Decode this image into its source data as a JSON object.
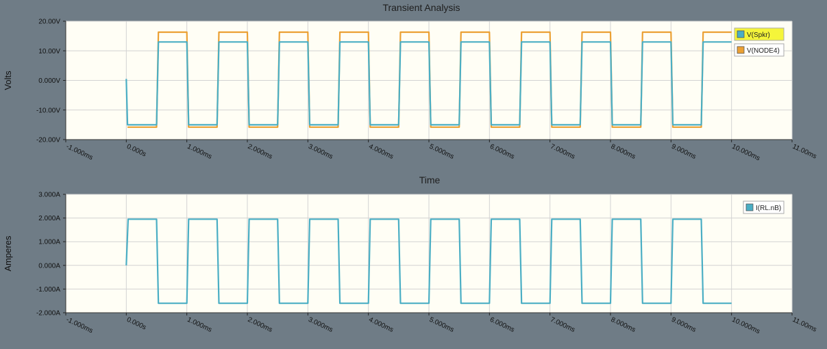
{
  "window_title": "Transient Analysis",
  "chart_data": [
    {
      "type": "line",
      "title": "Transient Analysis",
      "xlabel": "Time",
      "ylabel": "Volts",
      "xlim": [
        -1.0,
        11.0
      ],
      "ylim": [
        -20,
        20
      ],
      "x_ticks": [
        "-1.000ms",
        "0.000s",
        "1.000ms",
        "2.000ms",
        "3.000ms",
        "4.000ms",
        "5.000ms",
        "6.000ms",
        "7.000ms",
        "8.000ms",
        "9.000ms",
        "10.000ms",
        "11.00ms"
      ],
      "y_ticks": [
        {
          "value": 20,
          "label": "20.00V"
        },
        {
          "value": 10,
          "label": "10.00V"
        },
        {
          "value": 0,
          "label": "0.000V"
        },
        {
          "value": -10,
          "label": "-10.00V"
        },
        {
          "value": -20,
          "label": "-20.00V"
        }
      ],
      "grid": true,
      "legend_position": "top-right",
      "series": [
        {
          "name": "V(Spkr)",
          "color": "#4aaec4",
          "highlight": "#f5f53a",
          "low": -15,
          "high": 13,
          "start": 0.5,
          "square_period": 1.0,
          "duty": 0.5,
          "x_start": 0.0,
          "x_end": 10.0,
          "initial": 0.5
        },
        {
          "name": "V(NODE4)",
          "color": "#eba033",
          "low": -15.8,
          "high": 16.3,
          "start": 0.5,
          "square_period": 1.0,
          "duty": 0.5,
          "x_start": 0.0,
          "x_end": 10.0
        }
      ]
    },
    {
      "type": "line",
      "title": "",
      "xlabel": "",
      "ylabel": "Amperes",
      "xlim": [
        -1.0,
        11.0
      ],
      "ylim": [
        -2.0,
        3.0
      ],
      "x_ticks": [
        "-1.000ms",
        "0.000s",
        "1.000ms",
        "2.000ms",
        "3.000ms",
        "4.000ms",
        "5.000ms",
        "6.000ms",
        "7.000ms",
        "8.000ms",
        "9.000ms",
        "10.000ms",
        "11.00ms"
      ],
      "y_ticks": [
        {
          "value": 3,
          "label": "3.000A"
        },
        {
          "value": 2,
          "label": "2.000A"
        },
        {
          "value": 1,
          "label": "1.000A"
        },
        {
          "value": 0,
          "label": "0.000A"
        },
        {
          "value": -1,
          "label": "-1.000A"
        },
        {
          "value": -2,
          "label": "-2.000A"
        }
      ],
      "grid": true,
      "legend_position": "top-right",
      "series": [
        {
          "name": "I(RL.nB)",
          "color": "#4aaec4",
          "low": -1.6,
          "high": 1.95,
          "start": 0.0,
          "square_period": 1.0,
          "duty": 0.5,
          "x_start": 0.0,
          "x_end": 10.0,
          "initial": 0.0
        }
      ]
    }
  ]
}
